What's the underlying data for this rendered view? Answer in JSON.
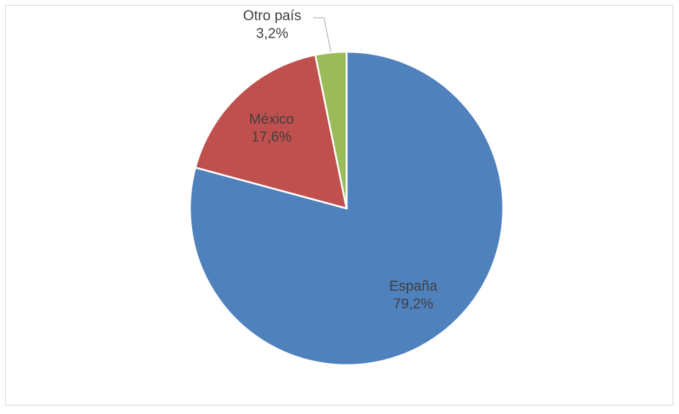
{
  "chart_data": {
    "type": "pie",
    "categories": [
      "España",
      "México",
      "Otro país"
    ],
    "values": [
      79.2,
      17.6,
      3.2
    ],
    "value_labels": [
      "79,2%",
      "17,6%",
      "3,2%"
    ],
    "colors": [
      "#4f81bd",
      "#c0504d",
      "#9bbb59"
    ]
  }
}
